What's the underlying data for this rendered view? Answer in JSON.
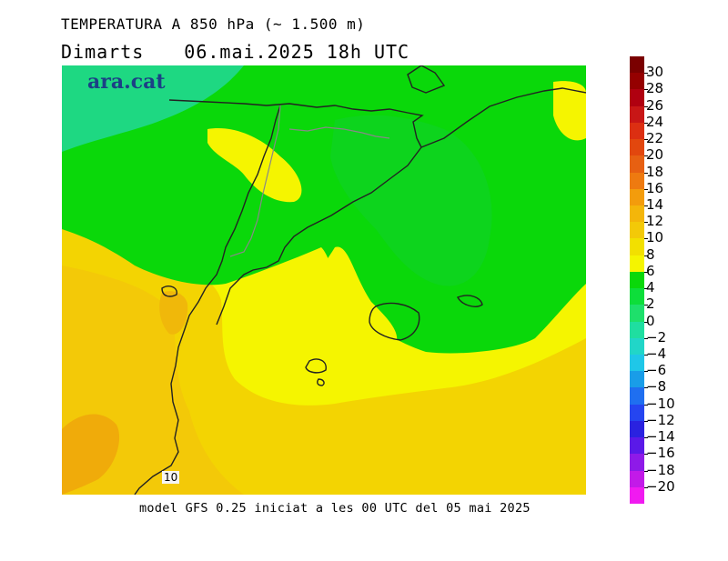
{
  "header": {
    "title": "TEMPERATURA A 850 hPa (~ 1.500 m)",
    "day": "Dimarts",
    "datetime": "06.mai.2025 18h UTC"
  },
  "map": {
    "logo": "ara.cat",
    "contour_label": "10"
  },
  "footer": {
    "text": "model GFS 0.25 iniciat a les 00 UTC del 05 mai 2025"
  },
  "colorbar": {
    "labels": [
      "30",
      "28",
      "26",
      "24",
      "22",
      "20",
      "18",
      "16",
      "14",
      "12",
      "10",
      "8",
      "6",
      "4",
      "2",
      "0",
      "−2",
      "−4",
      "−6",
      "−8",
      "−10",
      "−12",
      "−14",
      "−16",
      "−18",
      "−20"
    ],
    "colors": [
      "#7a0000",
      "#950000",
      "#b00010",
      "#c81616",
      "#dc2f12",
      "#e2470e",
      "#e76012",
      "#ee7a10",
      "#f39c0c",
      "#f4b60a",
      "#f3c908",
      "#f2e000",
      "#f5f500",
      "#0ad80a",
      "#0dde3a",
      "#1ee06b",
      "#1fdea0",
      "#21d6c8",
      "#1fc7e8",
      "#199de8",
      "#1f6ff0",
      "#2545f0",
      "#2a22e0",
      "#5a19e8",
      "#8e1ae8",
      "#c21ae8",
      "#f01af0"
    ]
  }
}
